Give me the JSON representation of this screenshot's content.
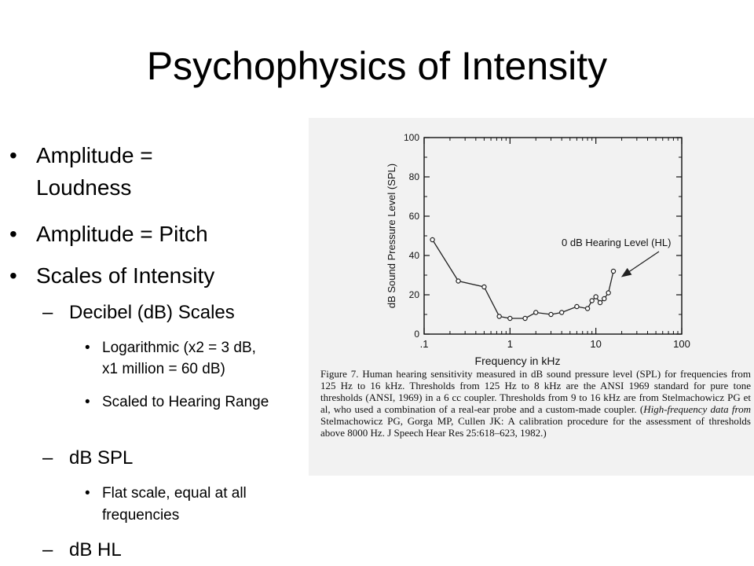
{
  "slide": {
    "title": "Psychophysics of Intensity"
  },
  "bullets": [
    {
      "level": 1,
      "marker": "•",
      "text": "Amplitude ="
    },
    {
      "level": 1,
      "marker": "",
      "text": "Loudness"
    },
    {
      "level": 1,
      "marker": "•",
      "text": "Amplitude = Pitch"
    },
    {
      "level": 1,
      "marker": "•",
      "text": "Scales of Intensity"
    },
    {
      "level": 2,
      "marker": "–",
      "text": "Decibel (dB) Scales"
    },
    {
      "level": 3,
      "marker": "•",
      "text": "Logarithmic (x2 = 3 dB,"
    },
    {
      "level": 3,
      "marker": "",
      "text": "x1 million = 60 dB)"
    },
    {
      "level": 3,
      "marker": "•",
      "text": "Scaled to Hearing Range"
    },
    {
      "level": 2,
      "marker": "–",
      "text": "dB SPL"
    },
    {
      "level": 3,
      "marker": "•",
      "text": "Flat scale, equal at all"
    },
    {
      "level": 3,
      "marker": "",
      "text": "frequencies"
    },
    {
      "level": 2,
      "marker": "–",
      "text": "dB HL"
    }
  ],
  "chart_data": {
    "type": "line",
    "title": "",
    "xlabel": "Frequency in kHz",
    "ylabel": "dB Sound Pressure Level (SPL)",
    "x_scale": "log",
    "xlim": [
      0.1,
      100
    ],
    "ylim": [
      0,
      100
    ],
    "x_tick_labels": [
      ".1",
      "1",
      "10",
      "100"
    ],
    "y_tick_labels": [
      "0",
      "20",
      "40",
      "60",
      "80",
      "100"
    ],
    "annotation": "0 dB Hearing Level (HL)",
    "series": [
      {
        "name": "",
        "x": [
          0.125,
          0.25,
          0.5,
          0.75,
          1,
          1.5,
          2,
          3,
          4,
          6,
          8,
          9,
          10,
          11.2,
          12.5,
          14,
          16
        ],
        "y": [
          48,
          27,
          24,
          9,
          8,
          8,
          11,
          10,
          11,
          14,
          13,
          17,
          19,
          16,
          18,
          21,
          32
        ]
      }
    ]
  },
  "caption": {
    "label": "Figure 7.",
    "text_a": "Human hearing sensitivity measured in dB sound pressure level (SPL) for frequencies from 125 Hz to 16 kHz. Thresholds from 125 Hz to 8 kHz are the ANSI 1969 standard for pure tone thresholds (ANSI, 1969) in a 6 cc coupler. Thresholds from 9 to 16 kHz are from Stelmachowicz PG et al, who used a combination of a real-ear probe and a custom-made coupler. (",
    "italic": "High-frequency data from",
    "text_b": "Stelmachowicz PG, Gorga MP, Cullen JK: A calibration procedure for the assessment of thresholds above 8000 Hz. J Speech Hear Res 25:618–623, 1982.)"
  }
}
